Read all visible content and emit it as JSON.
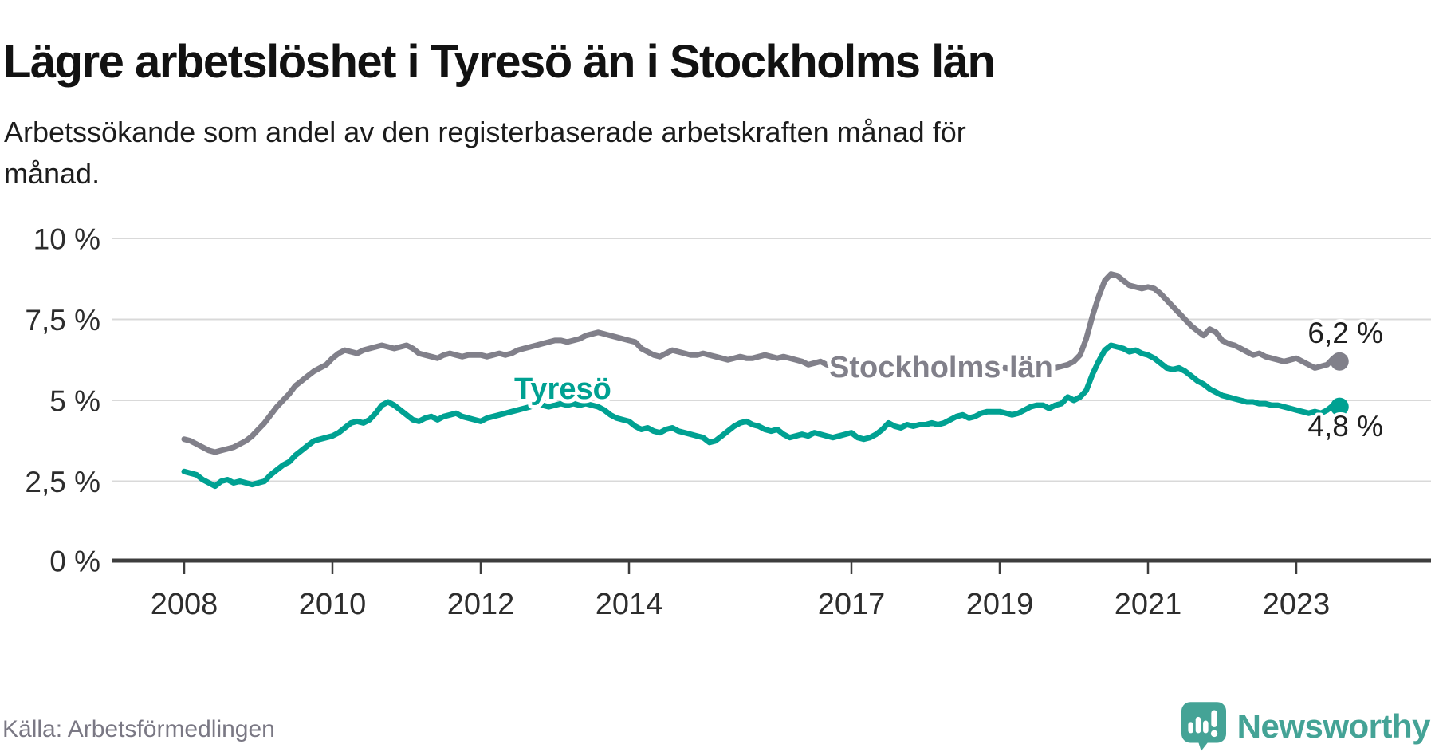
{
  "header": {
    "title": "Lägre arbetslöshet i Tyresö än i Stockholms län",
    "subtitle_line1": "Arbetssökande som andel av den registerbaserade arbetskraften månad för",
    "subtitle_line2": "månad."
  },
  "footer": {
    "source": "Källa: Arbetsförmedlingen",
    "brand": "Newsworthy",
    "brand_color": "#44a396",
    "logo_icon": "speech-bubble-bar-chart-icon"
  },
  "colors": {
    "grid": "#d9d9d9",
    "axis": "#3d3d3d",
    "tick_label": "#2d2d2d",
    "value_label": "#1f1f1f",
    "stockholm": "#81808a",
    "tyreso": "#00a192"
  },
  "chart_data": {
    "type": "line",
    "title": "Lägre arbetslöshet i Tyresö än i Stockholms län",
    "subtitle": "Arbetssökande som andel av den registerbaserade arbetskraften månad för månad.",
    "unit": "%",
    "frequency": "monthly",
    "x_start": "2008-01",
    "x_end": "2023-08",
    "grid": true,
    "legend_position": "inline-labels",
    "ylim": [
      0,
      10.8
    ],
    "y_ticks": [
      0,
      2.5,
      5,
      7.5,
      10
    ],
    "y_tick_labels": [
      "0 %",
      "2,5 %",
      "5 %",
      "7,5 %",
      "10 %"
    ],
    "x_tick_years": [
      2008,
      2010,
      2012,
      2014,
      2017,
      2019,
      2021,
      2023
    ],
    "x_tick_labels": [
      "2008",
      "2010",
      "2012",
      "2014",
      "2017",
      "2019",
      "2021",
      "2023"
    ],
    "series": [
      {
        "name": "Stockholms län",
        "color": "#81808a",
        "end_label": "6,2 %",
        "end_value": 6.2,
        "values": [
          3.8,
          3.75,
          3.65,
          3.55,
          3.45,
          3.4,
          3.45,
          3.5,
          3.55,
          3.65,
          3.75,
          3.9,
          4.1,
          4.3,
          4.55,
          4.8,
          5.0,
          5.2,
          5.45,
          5.6,
          5.75,
          5.9,
          6.0,
          6.1,
          6.3,
          6.45,
          6.55,
          6.5,
          6.45,
          6.55,
          6.6,
          6.65,
          6.7,
          6.65,
          6.6,
          6.65,
          6.7,
          6.6,
          6.45,
          6.4,
          6.35,
          6.3,
          6.4,
          6.45,
          6.4,
          6.35,
          6.4,
          6.4,
          6.4,
          6.35,
          6.4,
          6.45,
          6.4,
          6.45,
          6.55,
          6.6,
          6.65,
          6.7,
          6.75,
          6.8,
          6.85,
          6.85,
          6.8,
          6.85,
          6.9,
          7.0,
          7.05,
          7.1,
          7.05,
          7.0,
          6.95,
          6.9,
          6.85,
          6.8,
          6.6,
          6.5,
          6.4,
          6.35,
          6.45,
          6.55,
          6.5,
          6.45,
          6.4,
          6.4,
          6.45,
          6.4,
          6.35,
          6.3,
          6.25,
          6.3,
          6.35,
          6.3,
          6.3,
          6.35,
          6.4,
          6.35,
          6.3,
          6.35,
          6.3,
          6.25,
          6.2,
          6.1,
          6.15,
          6.2,
          6.1,
          6.05,
          6.1,
          6.1,
          6.05,
          6.0,
          5.95,
          5.9,
          5.85,
          5.9,
          5.95,
          6.0,
          5.95,
          5.9,
          5.9,
          5.95,
          5.95,
          5.9,
          5.85,
          5.8,
          5.85,
          5.9,
          5.95,
          5.9,
          5.85,
          5.9,
          5.95,
          6.0,
          6.0,
          6.0,
          5.95,
          5.95,
          6.0,
          6.05,
          6.1,
          6.1,
          6.05,
          6.0,
          6.05,
          6.1,
          6.2,
          6.4,
          6.9,
          7.6,
          8.2,
          8.7,
          8.9,
          8.85,
          8.7,
          8.55,
          8.5,
          8.45,
          8.5,
          8.45,
          8.3,
          8.1,
          7.9,
          7.7,
          7.5,
          7.3,
          7.15,
          7.0,
          7.2,
          7.1,
          6.85,
          6.75,
          6.7,
          6.6,
          6.5,
          6.4,
          6.45,
          6.35,
          6.3,
          6.25,
          6.2,
          6.25,
          6.3,
          6.2,
          6.1,
          6.0,
          6.05,
          6.1,
          6.3,
          6.2
        ]
      },
      {
        "name": "Tyresö",
        "color": "#00a192",
        "end_label": "4,8 %",
        "end_value": 4.8,
        "values": [
          2.8,
          2.75,
          2.7,
          2.55,
          2.45,
          2.35,
          2.5,
          2.55,
          2.45,
          2.5,
          2.45,
          2.4,
          2.45,
          2.5,
          2.7,
          2.85,
          3.0,
          3.1,
          3.3,
          3.45,
          3.6,
          3.75,
          3.8,
          3.85,
          3.9,
          4.0,
          4.15,
          4.3,
          4.35,
          4.3,
          4.4,
          4.6,
          4.85,
          4.95,
          4.85,
          4.7,
          4.55,
          4.4,
          4.35,
          4.45,
          4.5,
          4.4,
          4.5,
          4.55,
          4.6,
          4.5,
          4.45,
          4.4,
          4.35,
          4.45,
          4.5,
          4.55,
          4.6,
          4.65,
          4.7,
          4.75,
          4.8,
          4.9,
          4.85,
          4.8,
          4.85,
          4.9,
          4.85,
          4.9,
          4.85,
          4.9,
          4.85,
          4.8,
          4.7,
          4.55,
          4.45,
          4.4,
          4.35,
          4.2,
          4.1,
          4.15,
          4.05,
          4.0,
          4.1,
          4.15,
          4.05,
          4.0,
          3.95,
          3.9,
          3.85,
          3.7,
          3.75,
          3.9,
          4.05,
          4.2,
          4.3,
          4.35,
          4.25,
          4.2,
          4.1,
          4.05,
          4.1,
          3.95,
          3.85,
          3.9,
          3.95,
          3.9,
          4.0,
          3.95,
          3.9,
          3.85,
          3.9,
          3.95,
          4.0,
          3.85,
          3.8,
          3.85,
          3.95,
          4.1,
          4.3,
          4.2,
          4.15,
          4.25,
          4.2,
          4.25,
          4.25,
          4.3,
          4.25,
          4.3,
          4.4,
          4.5,
          4.55,
          4.45,
          4.5,
          4.6,
          4.65,
          4.65,
          4.65,
          4.6,
          4.55,
          4.6,
          4.7,
          4.8,
          4.85,
          4.85,
          4.75,
          4.85,
          4.9,
          5.1,
          5.0,
          5.1,
          5.3,
          5.8,
          6.2,
          6.55,
          6.7,
          6.65,
          6.6,
          6.5,
          6.55,
          6.45,
          6.4,
          6.3,
          6.15,
          6.0,
          5.95,
          6.0,
          5.9,
          5.75,
          5.6,
          5.5,
          5.35,
          5.25,
          5.15,
          5.1,
          5.05,
          5.0,
          4.95,
          4.95,
          4.9,
          4.9,
          4.85,
          4.85,
          4.8,
          4.75,
          4.7,
          4.65,
          4.6,
          4.65,
          4.6,
          4.7,
          4.85,
          4.8
        ]
      }
    ]
  }
}
